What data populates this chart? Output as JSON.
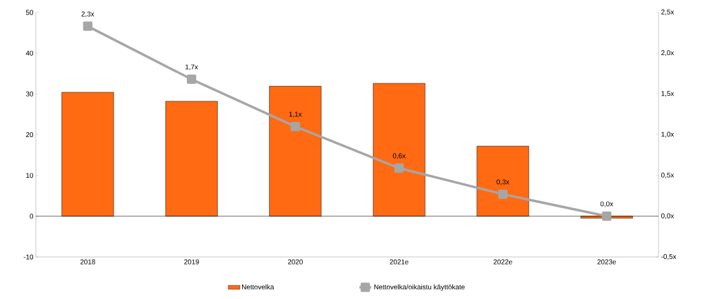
{
  "chart_data": {
    "type": "bar",
    "categories": [
      "2018",
      "2019",
      "2020",
      "2021e",
      "2022e",
      "2023e"
    ],
    "series": [
      {
        "name": "Nettovelka",
        "color": "#ff6a13",
        "values": [
          30.4,
          28.2,
          31.9,
          32.6,
          17.2,
          -0.5
        ]
      },
      {
        "name": "Nettovelka/oikaistu käyttökate",
        "type": "line",
        "axis": "y2",
        "color": "#a6a6a6",
        "values": [
          2.33,
          1.68,
          1.1,
          0.59,
          0.27,
          0.0
        ],
        "value_labels": [
          "2,3x",
          "1,7x",
          "1,1x",
          "0,6x",
          "0,3x",
          "0,0x"
        ]
      }
    ],
    "ylim": [
      -10,
      50
    ],
    "yticks": [
      -10,
      0,
      10,
      20,
      30,
      40,
      50
    ],
    "y2lim": [
      -0.5,
      2.5
    ],
    "y2ticks": [
      {
        "value": -0.5,
        "label": "-0,5x"
      },
      {
        "value": 0,
        "label": "0,0x"
      },
      {
        "value": 0.5,
        "label": "0,5x"
      },
      {
        "value": 1.0,
        "label": "1,0x"
      },
      {
        "value": 1.5,
        "label": "1,5x"
      },
      {
        "value": 2.0,
        "label": "2,0x"
      },
      {
        "value": 2.5,
        "label": "2,5x"
      }
    ],
    "ref_lines": [
      {
        "axis": "y",
        "value": 0,
        "color": "#000000"
      }
    ],
    "legend": "bottom",
    "marker": "square"
  }
}
